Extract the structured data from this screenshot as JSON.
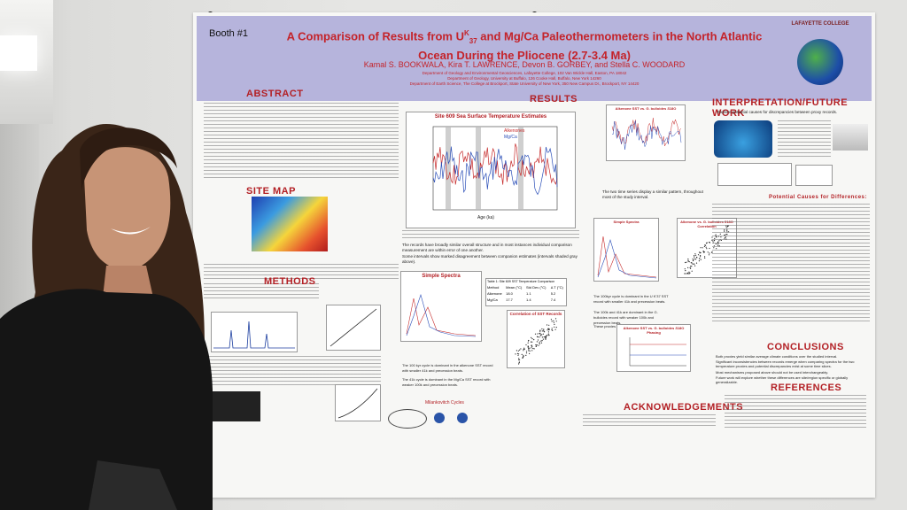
{
  "poster": {
    "booth": "Booth #1",
    "title_line1": "A Comparison of Results from U",
    "title_sup": "K",
    "title_sub": "37",
    "title_line1_rest": " and Mg/Ca Paleothermometers in the North Atlantic",
    "title_line2": "Ocean During the Pliocene (2.7-3.4 Ma)",
    "authors": "Kamal S. BOOKWALA, Kira T. LAWRENCE, Devon B. GORBEY, and Stella C. WOODARD",
    "affiliation_1": "Department of Geology and Environmental Geosciences, Lafayette College, 102 Van Wickle Hall, Easton, PA 18042",
    "affiliation_2": "Department of Geology, University at Buffalo, 126 Cooke Hall, Buffalo, New York 14260",
    "affiliation_3": "Department of Earth Science, The College at Brockport, State University of New York, 350 New Campus Dr., Brockport, NY 14420",
    "logo_text": "LAFAYETTE COLLEGE",
    "sections": {
      "abstract": "ABSTRACT",
      "results": "RESULTS",
      "interpretation": "INTERPRETATION/FUTURE WORK",
      "interpretation_sub": "Explore potential causes for discrepancies between proxy records.",
      "site_map": "SITE MAP",
      "methods": "METHODS",
      "conclusions": "CONCLUSIONS",
      "acknowledgements": "ACKNOWLEDGEMENTS",
      "references": "REFERENCES",
      "potential_causes": "Potential Causes for Differences:"
    },
    "main_plot": {
      "title": "Site 609 Sea Surface Temperature Estimates",
      "legend_1": "U",
      "legend_1_rest": "K'37",
      "legend_2": "Mg/Ca",
      "legend_3": "Alkenones",
      "xlabel": "Age (ka)",
      "ylabel_left": "U K'37 SST (°C)",
      "ylabel_right": "Mg/Ca Temperatures (°C) (G. bulloides)",
      "x_ticks": [
        "2700",
        "2800",
        "2900",
        "3000",
        "3100",
        "3200",
        "3300",
        "3400"
      ],
      "y_ticks": [
        "12",
        "14",
        "16",
        "18",
        "20",
        "22",
        "24"
      ]
    },
    "table": {
      "title": "Table 1: Site 609 SST Temperature Comparison",
      "headers": [
        "Method",
        "Mean (°C)",
        "Std Dev (°C)",
        "Δ T (°C)"
      ],
      "rows": [
        [
          "Alkenone",
          "18.0",
          "1.1",
          "5.2"
        ],
        [
          "Mg/Ca",
          "17.7",
          "1.4",
          "7.4"
        ]
      ]
    },
    "small_plots": {
      "simple_spectra": "Simple Spectra",
      "correlation": "Correlation of SST Records",
      "alkenone_bulloides": "Alkenone SST vs. G. bulloides δ18O",
      "alkenone_corr": "Alkenone vs. G. bulloides δ18O Correlation",
      "phasing": "Alkenone SST vs. G. bulloides δ18O Phasing",
      "milankovitch": "Milankovitch Cycles",
      "milankovitch_labels": [
        "Eccentricity",
        "Obliquity",
        "Precession"
      ]
    },
    "results_bullets": [
      "The records have broadly similar overall structure and in most instances individual comparison measurement are within error of one another.",
      "Some intervals show marked disagreement between companion estimates (intervals shaded gray above).",
      "The 100 kyr cycle is dominant in the alkenone SST record with smaller 41k and precession beats.",
      "The 41k cycle is dominant in the Mg/Ca SST record with weaker 100k and precession beats.",
      "The two time series display a similar pattern, throughout most of the study interval.",
      "The 100kyr cycle is dominant in the U K'37 SST record with smaller 41k and precession beats.",
      "The 100k and 41k are dominant in the G. bulloides record with weaker 100k and precession beats.",
      "These proxies have similar spectra fingerprints."
    ],
    "conclusion_bullets": [
      "Both proxies yield similar average climate conditions over the studied interval.",
      "Significant inconsistencies between records emerge when comparing spectra for the two temperature proxies and potential discrepancies exist at some time slices.",
      "Most mechanisms proposed above should not be used interchangeably.",
      "Future work will explore whether these differences are site/region specific or globally generalizable."
    ]
  },
  "colors": {
    "header_bg": "#b6b4dc",
    "title_red": "#c4232a",
    "section_red": "#b32025",
    "alkenone_line": "#c62a2a",
    "mgca_line": "#2b4fb8"
  }
}
